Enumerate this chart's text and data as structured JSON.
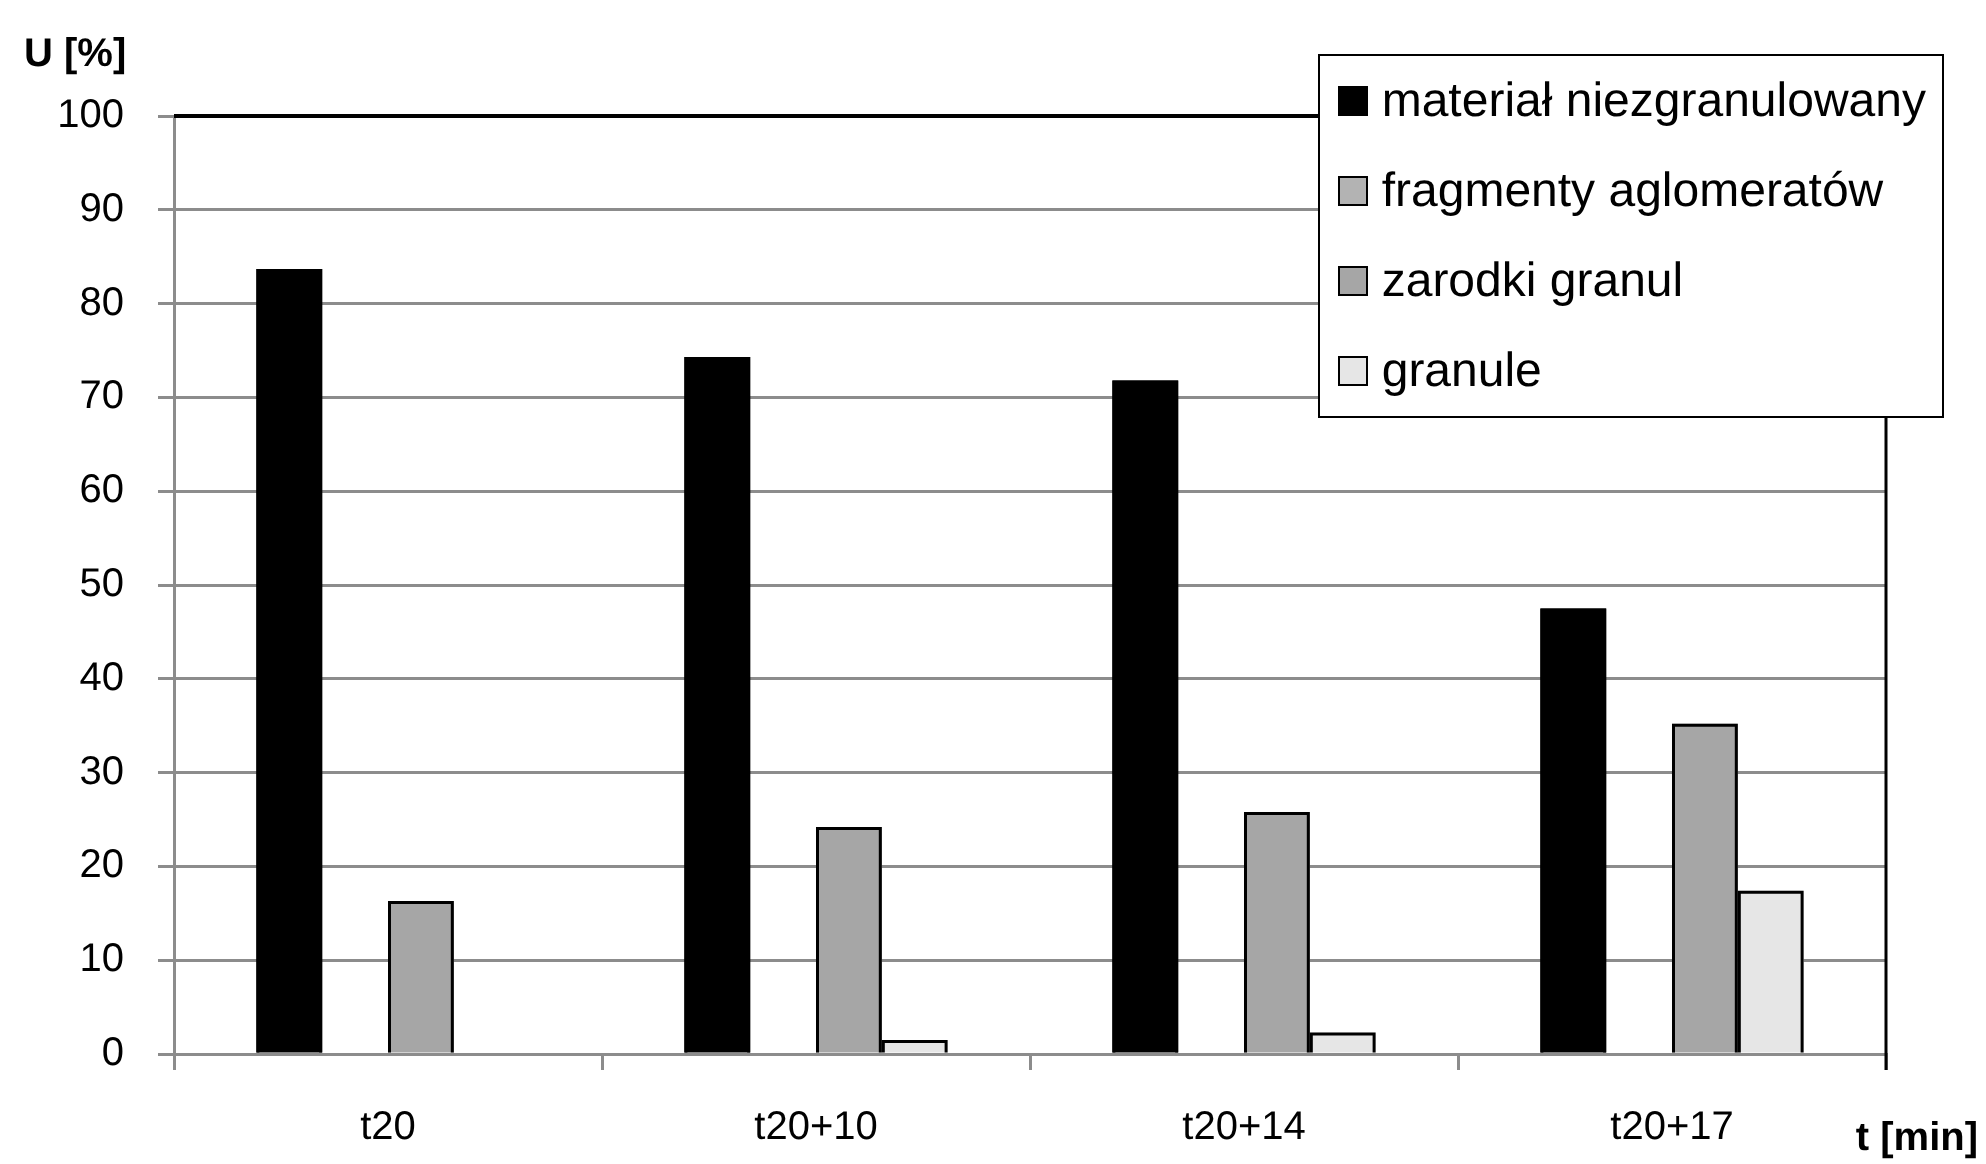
{
  "chart_data": {
    "type": "bar",
    "ylabel": "U [%]",
    "xlabel": "t [min]",
    "categories": [
      "t20",
      "t20+10",
      "t20+14",
      "t20+17"
    ],
    "series": [
      {
        "name": "materiał niezgranulowany",
        "color": "#000000",
        "values": [
          83.7,
          74.3,
          71.8,
          47.5
        ]
      },
      {
        "name": "fragmenty aglomeratów",
        "color": "#b3b3b3",
        "values": [
          0,
          0,
          0,
          0
        ]
      },
      {
        "name": "zarodki granul",
        "color": "#a6a6a6",
        "values": [
          16.3,
          24.2,
          25.8,
          35.2
        ]
      },
      {
        "name": "granule",
        "color": "#e6e6e6",
        "values": [
          0,
          1.5,
          2.3,
          17.4
        ]
      }
    ],
    "ylim": [
      0,
      100
    ],
    "yticks": [
      0,
      10,
      20,
      30,
      40,
      50,
      60,
      70,
      80,
      90,
      100
    ],
    "grid": "y",
    "legend": "top right"
  }
}
